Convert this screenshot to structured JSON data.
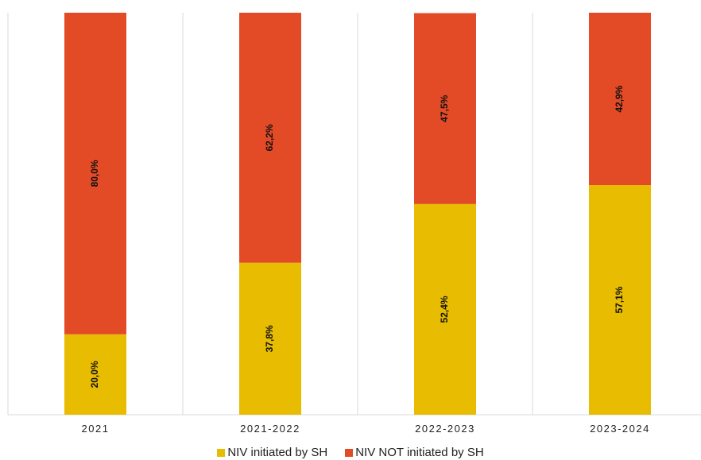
{
  "chart_data": {
    "type": "bar",
    "stacked": true,
    "orientation": "vertical",
    "categories": [
      "2021",
      "2021-2022",
      "2022-2023",
      "2023-2024"
    ],
    "ylim": [
      0,
      100
    ],
    "grid": "vertical separators",
    "legend_position": "bottom",
    "series": [
      {
        "name": "NIV initiated by SH",
        "color": "#e8bc00",
        "values": [
          20.0,
          37.8,
          52.4,
          57.1
        ],
        "labels": [
          "20,0%",
          "37,8%",
          "52,4%",
          "57,1%"
        ]
      },
      {
        "name": "NIV NOT initiated by SH",
        "color": "#e24b26",
        "values": [
          80.0,
          62.2,
          47.5,
          42.9
        ],
        "labels": [
          "80,0%",
          "62,2%",
          "47,5%",
          "42,9%"
        ]
      }
    ]
  }
}
